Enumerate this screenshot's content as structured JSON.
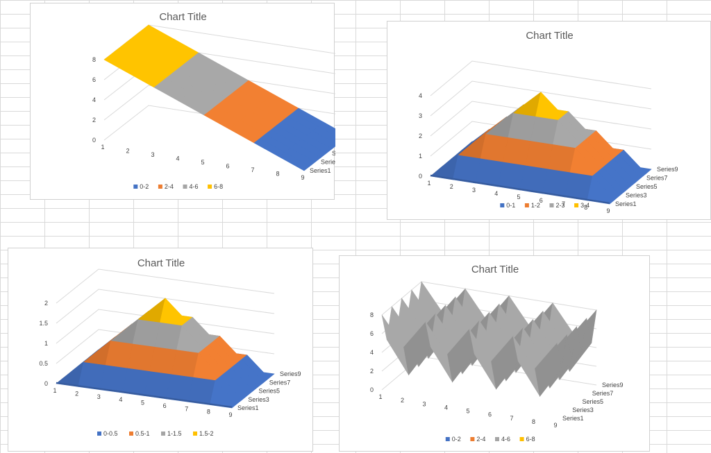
{
  "chart_data": [
    {
      "type": "surface-3d",
      "title": "Chart Title",
      "x": [
        "1",
        "2",
        "3",
        "4",
        "5",
        "6",
        "7",
        "8",
        "9"
      ],
      "series_axis": [
        "Series1",
        "Series3",
        "Series5",
        "Series7",
        "Series9"
      ],
      "y_ticks": [
        "0",
        "2",
        "4",
        "6",
        "8"
      ],
      "ylim": [
        0,
        8
      ],
      "legend": [
        {
          "label": "0-2",
          "color": "#4472C4"
        },
        {
          "label": "2-4",
          "color": "#ED7D31"
        },
        {
          "label": "4-6",
          "color": "#A5A5A5"
        },
        {
          "label": "6-8",
          "color": "#FFC000"
        }
      ],
      "legend_position": "bottom",
      "shape": "ramp",
      "peak": 8
    },
    {
      "type": "surface-3d",
      "title": "Chart Title",
      "x": [
        "1",
        "2",
        "3",
        "4",
        "5",
        "6",
        "7",
        "8",
        "9"
      ],
      "series_axis": [
        "Series1",
        "Series3",
        "Series5",
        "Series7",
        "Series9"
      ],
      "y_ticks": [
        "0",
        "1",
        "2",
        "3",
        "4"
      ],
      "ylim": [
        0,
        4
      ],
      "legend": [
        {
          "label": "0-1",
          "color": "#4472C4"
        },
        {
          "label": "1-2",
          "color": "#ED7D31"
        },
        {
          "label": "2-3",
          "color": "#A5A5A5"
        },
        {
          "label": "3-4",
          "color": "#FFC000"
        }
      ],
      "legend_position": "bottom",
      "shape": "pyramid",
      "peak": 4
    },
    {
      "type": "surface-3d",
      "title": "Chart Title",
      "x": [
        "1",
        "2",
        "3",
        "4",
        "5",
        "6",
        "7",
        "8",
        "9"
      ],
      "series_axis": [
        "Series1",
        "Series3",
        "Series5",
        "Series7",
        "Series9"
      ],
      "y_ticks": [
        "0",
        "0.5",
        "1",
        "1.5",
        "2"
      ],
      "ylim": [
        0,
        2
      ],
      "legend": [
        {
          "label": "0-0.5",
          "color": "#4472C4"
        },
        {
          "label": "0.5-1",
          "color": "#ED7D31"
        },
        {
          "label": "1-1.5",
          "color": "#A5A5A5"
        },
        {
          "label": "1.5-2",
          "color": "#FFC000"
        }
      ],
      "legend_position": "bottom",
      "shape": "stepped-pyramid",
      "peak": 2
    },
    {
      "type": "surface-3d",
      "title": "Chart Title",
      "x": [
        "1",
        "2",
        "3",
        "4",
        "5",
        "6",
        "7",
        "8",
        "9"
      ],
      "series_axis": [
        "Series1",
        "Series3",
        "Series5",
        "Series7",
        "Series9"
      ],
      "y_ticks": [
        "0",
        "2",
        "4",
        "6",
        "8"
      ],
      "ylim": [
        0,
        8
      ],
      "legend": [
        {
          "label": "0-2",
          "color": "#4472C4"
        },
        {
          "label": "2-4",
          "color": "#ED7D31"
        },
        {
          "label": "4-6",
          "color": "#A5A5A5"
        },
        {
          "label": "6-8",
          "color": "#FFC000"
        }
      ],
      "legend_position": "bottom",
      "shape": "zigzag",
      "peak": 8
    }
  ]
}
